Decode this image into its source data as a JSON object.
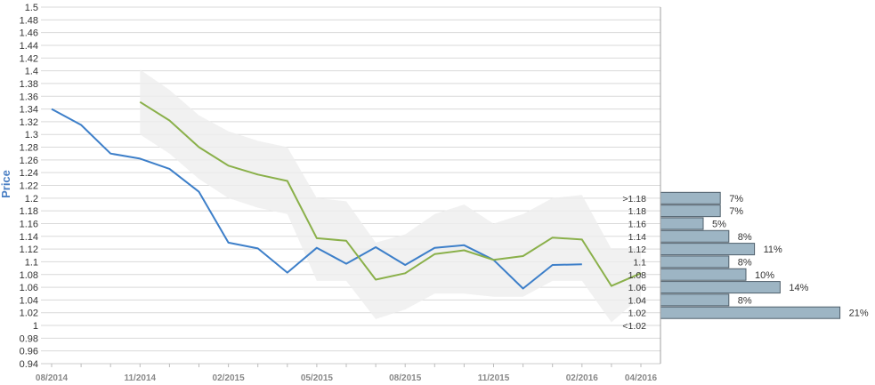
{
  "chart_data": {
    "type": "line",
    "ylabel": "Price",
    "xlabel": "",
    "title": "",
    "ylim": [
      0.94,
      1.5
    ],
    "y_ticks": [
      "0.94",
      "0.96",
      "0.98",
      "1",
      "1.02",
      "1.04",
      "1.06",
      "1.08",
      "1.1",
      "1.12",
      "1.14",
      "1.16",
      "1.18",
      "1.2",
      "1.22",
      "1.24",
      "1.26",
      "1.28",
      "1.3",
      "1.32",
      "1.34",
      "1.36",
      "1.38",
      "1.4",
      "1.42",
      "1.44",
      "1.46",
      "1.48",
      "1.5"
    ],
    "x_tick_labels": [
      "08/2014",
      "11/2014",
      "02/2015",
      "05/2015",
      "08/2015",
      "11/2015",
      "02/2016",
      "04/2016"
    ],
    "grid": true,
    "series": [
      {
        "color": "#3d7fc9",
        "x": [
          "08/2014",
          "09/2014",
          "10/2014",
          "11/2014",
          "12/2014",
          "01/2015",
          "02/2015",
          "03/2015",
          "04/2015",
          "05/2015",
          "06/2015",
          "07/2015",
          "08/2015",
          "09/2015",
          "10/2015",
          "11/2015",
          "12/2015",
          "01/2016",
          "02/2016"
        ],
        "values": [
          1.34,
          1.315,
          1.27,
          1.262,
          1.246,
          1.21,
          1.13,
          1.121,
          1.083,
          1.122,
          1.097,
          1.123,
          1.095,
          1.122,
          1.126,
          1.103,
          1.058,
          1.095,
          1.096
        ]
      },
      {
        "color": "#8ab04a",
        "x": [
          "11/2014",
          "12/2014",
          "01/2015",
          "02/2015",
          "03/2015",
          "04/2015",
          "05/2015",
          "06/2015",
          "07/2015",
          "08/2015",
          "09/2015",
          "10/2015",
          "11/2015",
          "12/2015",
          "01/2016",
          "02/2016",
          "03/2016",
          "04/2016"
        ],
        "values": [
          1.351,
          1.322,
          1.28,
          1.251,
          1.237,
          1.227,
          1.137,
          1.133,
          1.072,
          1.082,
          1.112,
          1.118,
          1.103,
          1.109,
          1.138,
          1.135,
          1.062,
          1.082
        ]
      }
    ],
    "band": {
      "color": "#eeeeee",
      "x": [
        "11/2014",
        "12/2014",
        "01/2015",
        "02/2015",
        "03/2015",
        "04/2015",
        "05/2015",
        "06/2015",
        "07/2015",
        "08/2015",
        "09/2015",
        "10/2015",
        "11/2015",
        "12/2015",
        "01/2016",
        "02/2016",
        "03/2016",
        "04/2016"
      ],
      "upper": [
        1.402,
        1.37,
        1.33,
        1.305,
        1.29,
        1.28,
        1.2,
        1.195,
        1.13,
        1.143,
        1.175,
        1.19,
        1.16,
        1.175,
        1.2,
        1.205,
        1.12,
        1.12
      ],
      "lower": [
        1.3,
        1.27,
        1.23,
        1.2,
        1.185,
        1.175,
        1.07,
        1.07,
        1.01,
        1.025,
        1.05,
        1.05,
        1.045,
        1.045,
        1.07,
        1.07,
        1.005,
        1.045
      ]
    },
    "distribution": {
      "color": "#9db5c4",
      "categories": [
        ">1.18",
        "1.18",
        "1.16",
        "1.14",
        "1.12",
        "1.1",
        "1.08",
        "1.06",
        "1.04",
        "1.02",
        "<1.02"
      ],
      "values": [
        7,
        7,
        5,
        8,
        11,
        8,
        10,
        14,
        8,
        21,
        null
      ],
      "labels": [
        "7%",
        "7%",
        "5%",
        "8%",
        "11%",
        "8%",
        "10%",
        "14%",
        "8%",
        "21%",
        ""
      ]
    }
  }
}
